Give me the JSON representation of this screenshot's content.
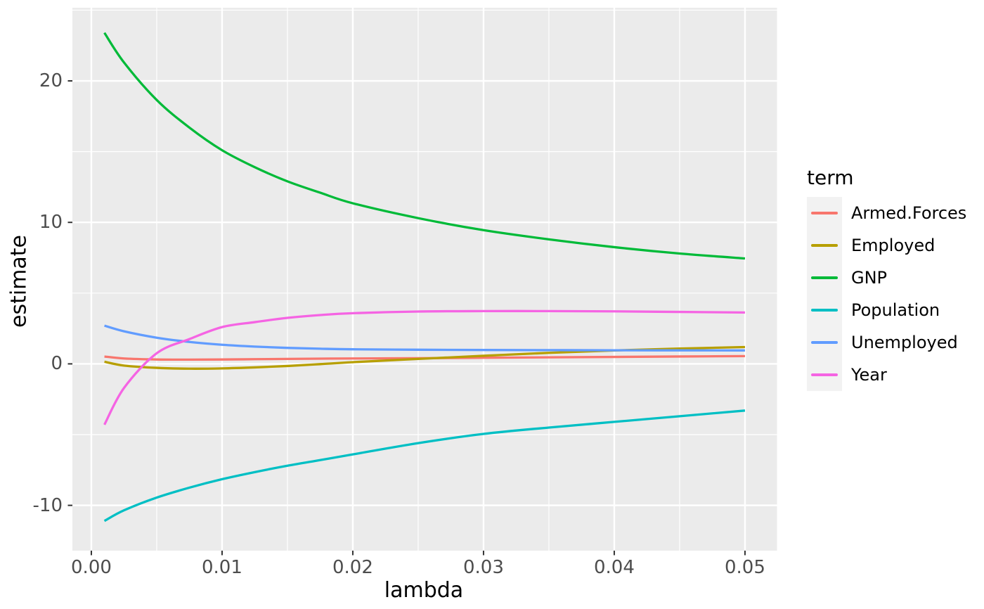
{
  "chart_data": {
    "type": "line",
    "title": "",
    "xlabel": "lambda",
    "ylabel": "estimate",
    "legend_title": "term",
    "legend_position": "right",
    "grid": "on",
    "xlim": [
      -0.00145,
      0.05245
    ],
    "ylim": [
      -13.2,
      25.17
    ],
    "x_ticks": {
      "values": [
        0,
        0.01,
        0.02,
        0.03,
        0.04,
        0.05
      ],
      "labels": [
        "0.00",
        "0.01",
        "0.02",
        "0.03",
        "0.04",
        "0.05"
      ]
    },
    "y_ticks": {
      "values": [
        -10,
        0,
        10,
        20
      ],
      "labels": [
        "-10",
        "0",
        "10",
        "20"
      ]
    },
    "x_minor": [
      0.005,
      0.015,
      0.025,
      0.035,
      0.045
    ],
    "y_minor": [
      -5,
      5,
      15,
      25
    ],
    "x": [
      0.001,
      0.0025,
      0.005,
      0.0075,
      0.01,
      0.0125,
      0.015,
      0.0175,
      0.02,
      0.025,
      0.03,
      0.035,
      0.04,
      0.045,
      0.05
    ],
    "series": [
      {
        "name": "Armed.Forces",
        "color": "#F8766D",
        "values": [
          0.52,
          0.38,
          0.31,
          0.3,
          0.31,
          0.33,
          0.35,
          0.37,
          0.38,
          0.4,
          0.43,
          0.46,
          0.49,
          0.52,
          0.55
        ]
      },
      {
        "name": "Employed",
        "color": "#B79F00",
        "values": [
          0.15,
          -0.12,
          -0.28,
          -0.34,
          -0.32,
          -0.25,
          -0.15,
          -0.02,
          0.12,
          0.35,
          0.57,
          0.78,
          0.95,
          1.08,
          1.19
        ]
      },
      {
        "name": "GNP",
        "color": "#00BA38",
        "values": [
          23.4,
          21.3,
          18.65,
          16.7,
          15.1,
          13.9,
          12.9,
          12.1,
          11.35,
          10.3,
          9.45,
          8.8,
          8.25,
          7.8,
          7.45
        ]
      },
      {
        "name": "Population",
        "color": "#00BFC4",
        "values": [
          -11.1,
          -10.35,
          -9.45,
          -8.75,
          -8.15,
          -7.65,
          -7.2,
          -6.8,
          -6.4,
          -5.6,
          -4.95,
          -4.5,
          -4.1,
          -3.7,
          -3.3
        ]
      },
      {
        "name": "Unemployed",
        "color": "#619CFF",
        "values": [
          2.7,
          2.3,
          1.85,
          1.55,
          1.35,
          1.22,
          1.13,
          1.07,
          1.03,
          1.0,
          0.98,
          0.97,
          0.96,
          0.955,
          0.95
        ]
      },
      {
        "name": "Year",
        "color": "#F564E3",
        "values": [
          -4.3,
          -1.7,
          0.75,
          1.75,
          2.6,
          2.95,
          3.25,
          3.45,
          3.58,
          3.7,
          3.73,
          3.73,
          3.71,
          3.67,
          3.63
        ]
      }
    ]
  },
  "theme": {
    "page_bg": "#FFFFFF",
    "panel_bg": "#EBEBEB",
    "grid_color": "#FFFFFF",
    "tick_mark_color": "#333333",
    "tick_label_color": "#4D4D4D",
    "title_color": "#000000",
    "legend_key_bg": "#F2F2F2"
  }
}
